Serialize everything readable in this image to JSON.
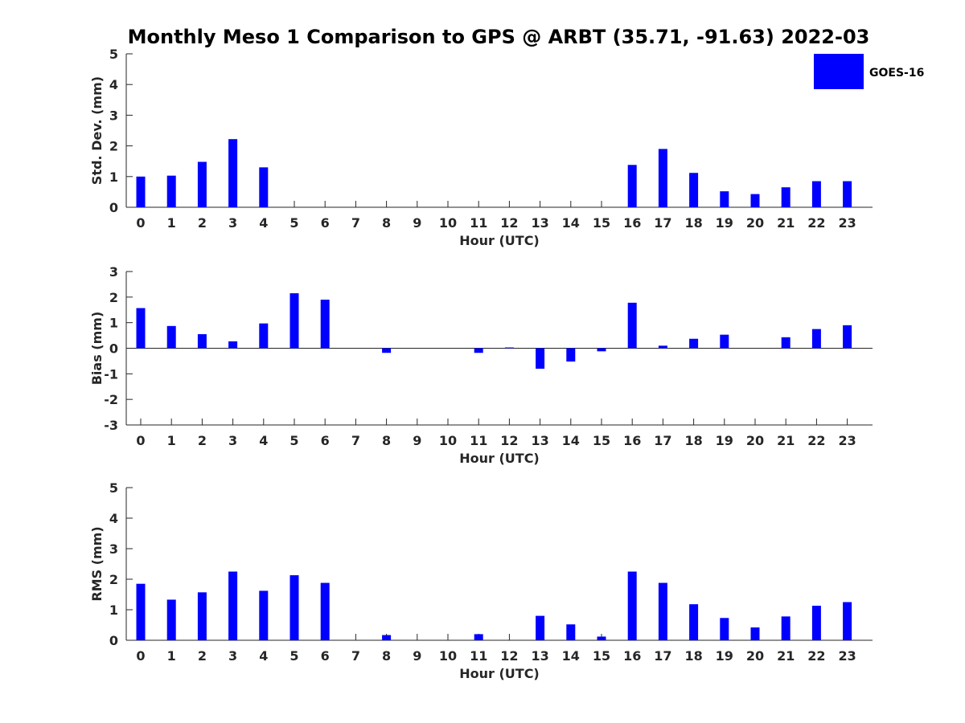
{
  "title": "Monthly Meso 1 Comparison to GPS @ ARBT (35.71, -91.63) 2022-03",
  "colors": {
    "bar": "#0000ff",
    "axis": "#262626",
    "background": "#ffffff"
  },
  "chart_data": [
    {
      "type": "bar",
      "title": "Monthly Meso 1 Comparison to GPS @ ARBT (35.71, -91.63) 2022-03",
      "xlabel": "Hour (UTC)",
      "ylabel": "Std. Dev. (mm)",
      "ylim": [
        0,
        5
      ],
      "yticks": [
        0,
        1,
        2,
        3,
        4,
        5
      ],
      "grid": false,
      "legend": "top-right",
      "categories": [
        "0",
        "1",
        "2",
        "3",
        "4",
        "5",
        "6",
        "7",
        "8",
        "9",
        "10",
        "11",
        "12",
        "13",
        "14",
        "15",
        "16",
        "17",
        "18",
        "19",
        "20",
        "21",
        "22",
        "23"
      ],
      "series": [
        {
          "name": "GOES-16",
          "values": [
            1.0,
            1.03,
            1.48,
            2.22,
            1.3,
            0,
            0,
            0,
            0,
            0,
            0,
            0,
            0,
            0,
            0,
            0,
            1.38,
            1.9,
            1.12,
            0.52,
            0.43,
            0.65,
            0.85,
            0.85
          ]
        }
      ]
    },
    {
      "type": "bar",
      "xlabel": "Hour (UTC)",
      "ylabel": "Bias (mm)",
      "ylim": [
        -3,
        3
      ],
      "yticks": [
        -3,
        -2,
        -1,
        0,
        1,
        2,
        3
      ],
      "grid": false,
      "categories": [
        "0",
        "1",
        "2",
        "3",
        "4",
        "5",
        "6",
        "7",
        "8",
        "9",
        "10",
        "11",
        "12",
        "13",
        "14",
        "15",
        "16",
        "17",
        "18",
        "19",
        "20",
        "21",
        "22",
        "23"
      ],
      "series": [
        {
          "name": "GOES-16",
          "values": [
            1.57,
            0.87,
            0.55,
            0.27,
            0.97,
            2.15,
            1.9,
            0,
            -0.18,
            0,
            0,
            -0.18,
            0.03,
            -0.8,
            -0.52,
            -0.12,
            1.78,
            0.1,
            0.37,
            0.53,
            0,
            0.43,
            0.75,
            0.9
          ]
        }
      ]
    },
    {
      "type": "bar",
      "xlabel": "Hour (UTC)",
      "ylabel": "RMS (mm)",
      "ylim": [
        0,
        5
      ],
      "yticks": [
        0,
        1,
        2,
        3,
        4,
        5
      ],
      "grid": false,
      "categories": [
        "0",
        "1",
        "2",
        "3",
        "4",
        "5",
        "6",
        "7",
        "8",
        "9",
        "10",
        "11",
        "12",
        "13",
        "14",
        "15",
        "16",
        "17",
        "18",
        "19",
        "20",
        "21",
        "22",
        "23"
      ],
      "series": [
        {
          "name": "GOES-16",
          "values": [
            1.85,
            1.33,
            1.57,
            2.25,
            1.62,
            2.13,
            1.88,
            0,
            0.17,
            0,
            0,
            0.2,
            0,
            0.8,
            0.52,
            0.12,
            2.25,
            1.88,
            1.18,
            0.73,
            0.42,
            0.78,
            1.13,
            1.25
          ]
        }
      ]
    }
  ]
}
